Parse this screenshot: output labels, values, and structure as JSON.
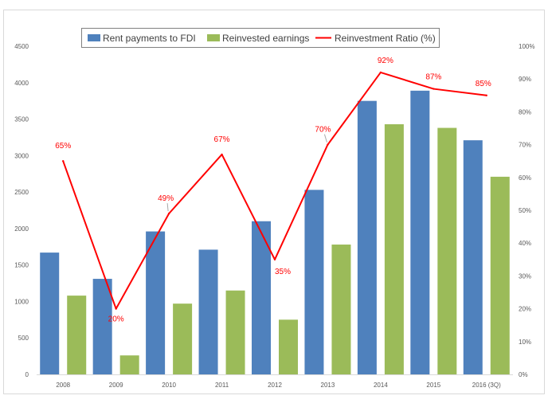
{
  "chart_data": {
    "type": "bar",
    "categories": [
      "2008",
      "2009",
      "2010",
      "2011",
      "2012",
      "2013",
      "2014",
      "2015",
      "2016 (3Q)"
    ],
    "series": [
      {
        "name": "Rent payments to FDI",
        "type": "bar",
        "axis": "left",
        "color": "#4f81bd",
        "values": [
          1670,
          1310,
          1960,
          1710,
          2100,
          2530,
          3750,
          3890,
          3210
        ]
      },
      {
        "name": "Reinvested earnings",
        "type": "bar",
        "axis": "left",
        "color": "#9bbb59",
        "values": [
          1080,
          260,
          970,
          1150,
          750,
          1780,
          3430,
          3380,
          2710
        ]
      },
      {
        "name": "Reinvestment Ratio (%)",
        "type": "line",
        "axis": "right",
        "color": "#ff0000",
        "values": [
          65,
          20,
          49,
          67,
          35,
          70,
          92,
          87,
          85
        ],
        "data_labels": [
          "65%",
          "20%",
          "49%",
          "67%",
          "35%",
          "70%",
          "92%",
          "87%",
          "85%"
        ]
      }
    ],
    "left_axis": {
      "range": [
        0,
        4500
      ],
      "ticks": [
        0,
        500,
        1000,
        1500,
        2000,
        2500,
        3000,
        3500,
        4000,
        4500
      ]
    },
    "right_axis": {
      "range": [
        0,
        100
      ],
      "ticks": [
        "0%",
        "10%",
        "20%",
        "30%",
        "40%",
        "50%",
        "60%",
        "70%",
        "80%",
        "90%",
        "100%"
      ]
    },
    "grid": false,
    "legend_position": "top"
  }
}
